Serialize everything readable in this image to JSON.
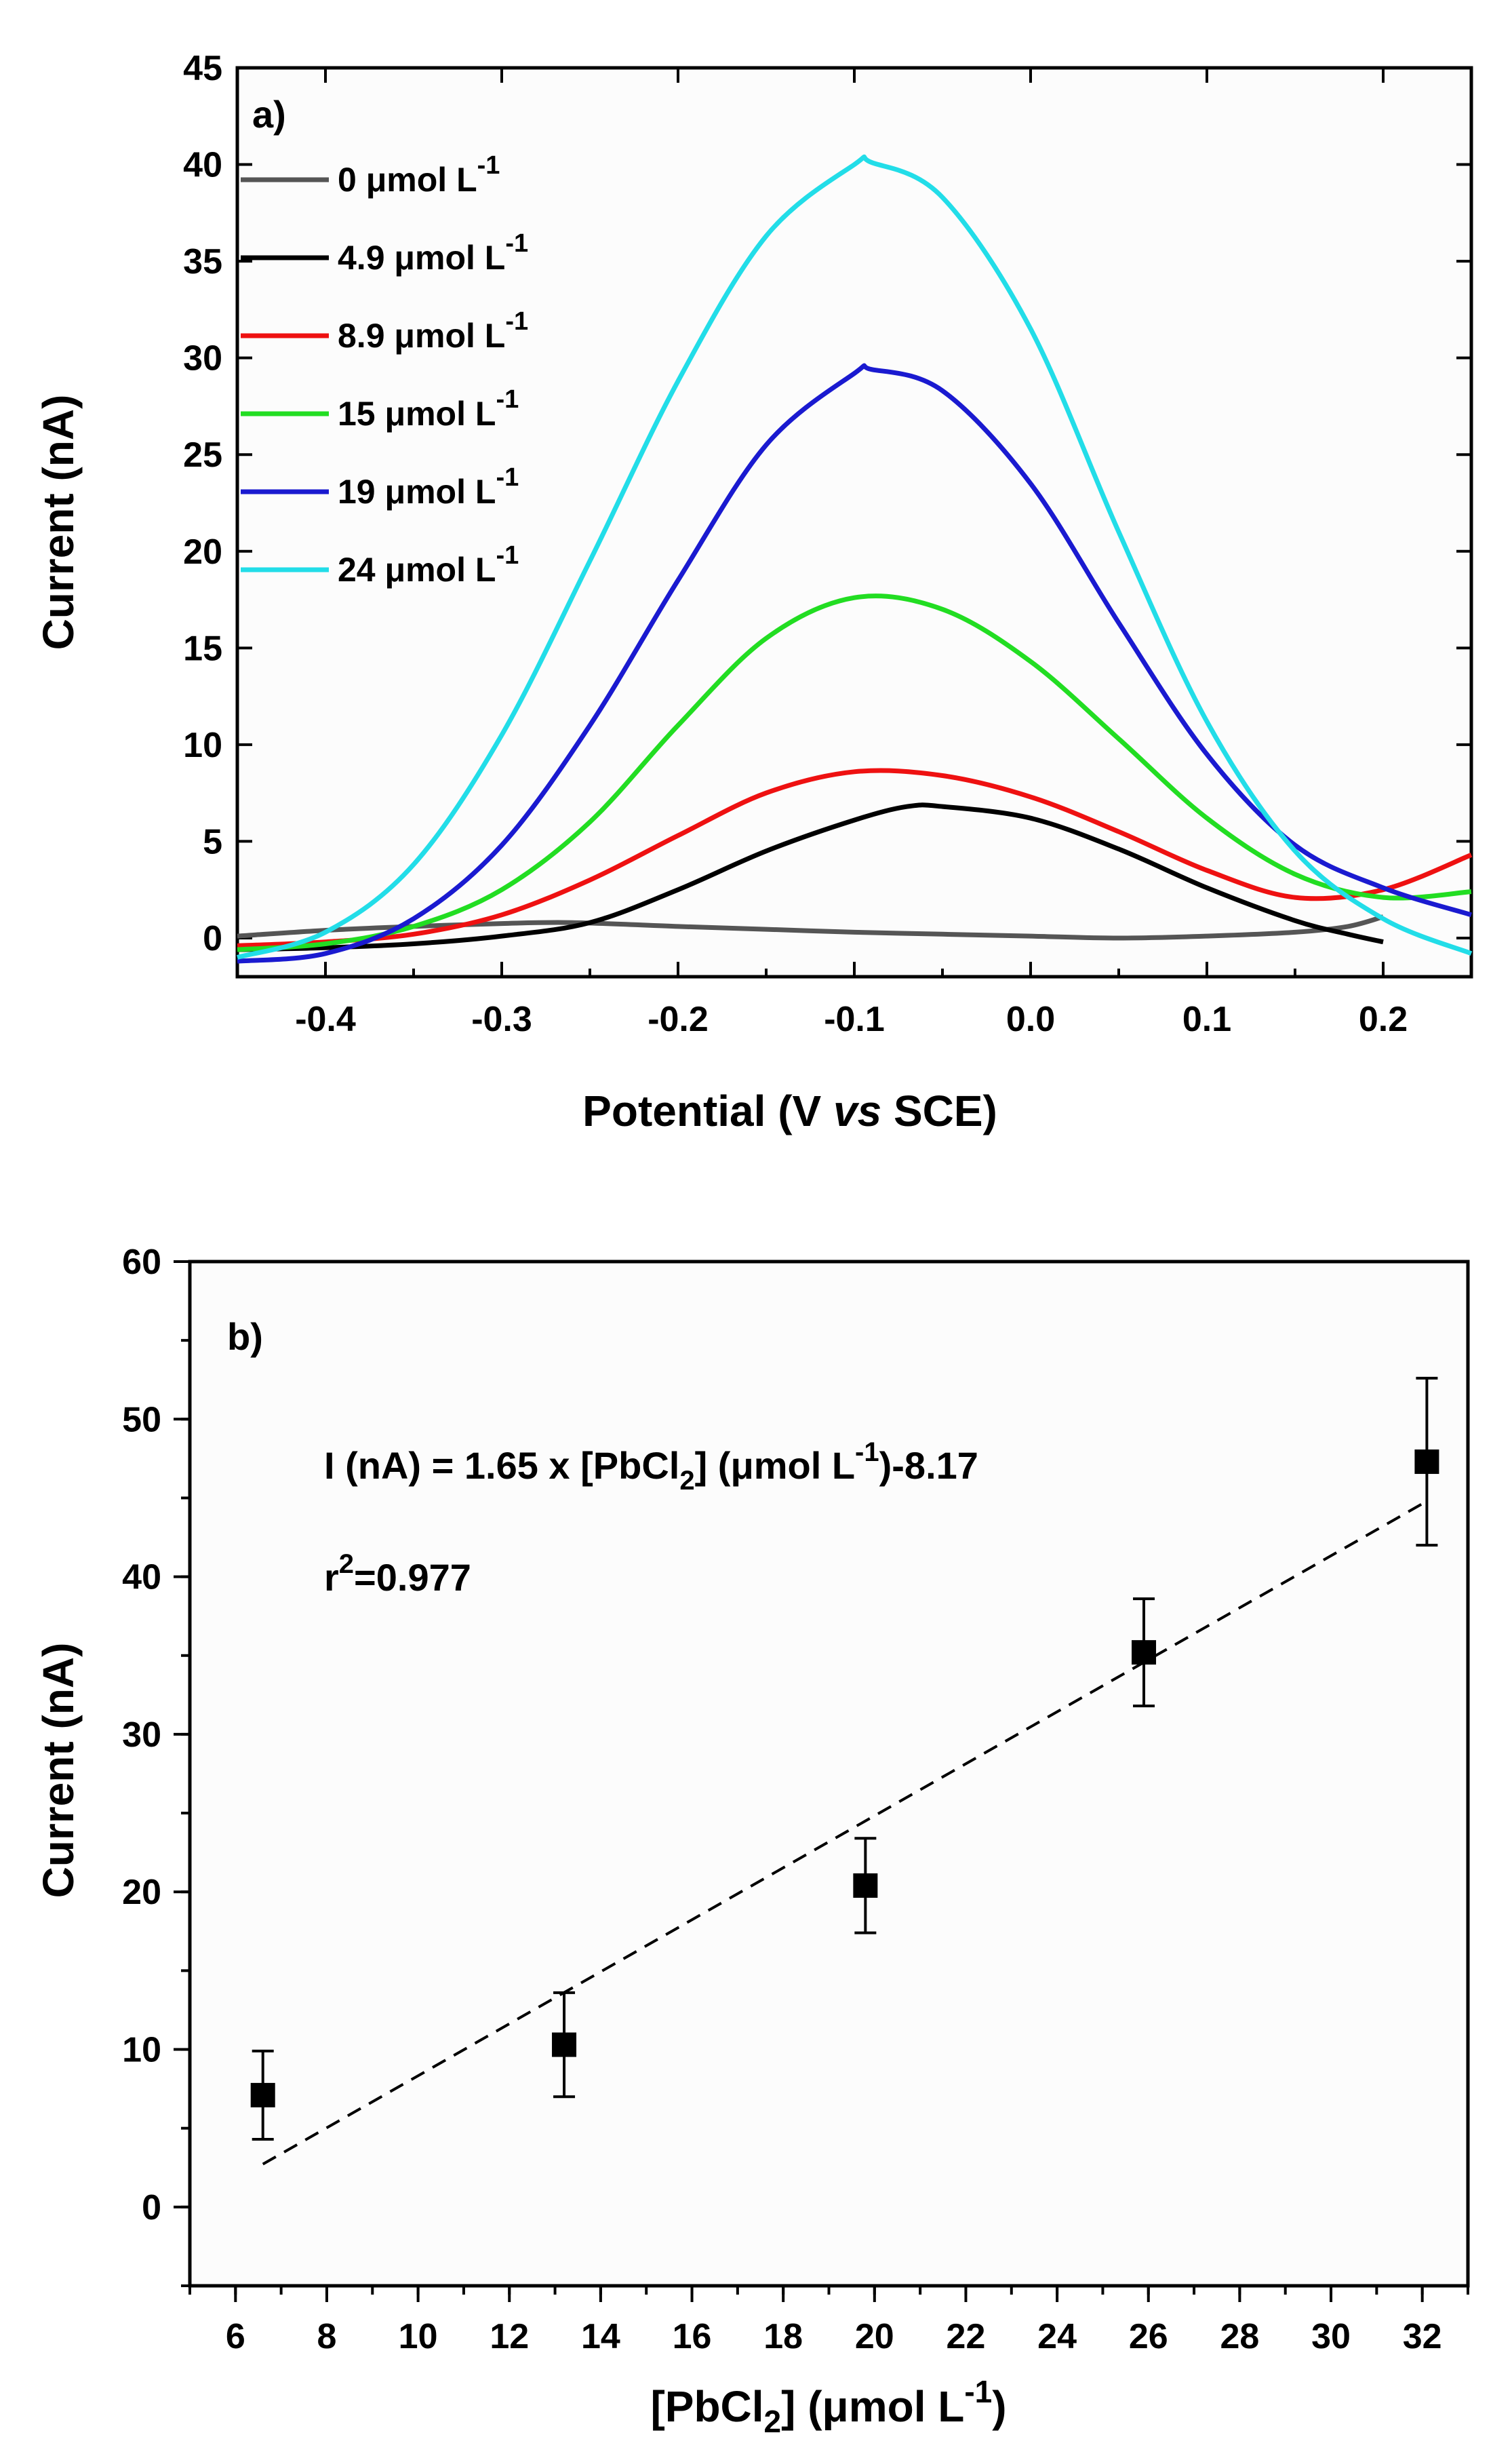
{
  "chart_data": [
    {
      "type": "line",
      "panel_label": "a)",
      "xlabel": {
        "pre": "Potential (V ",
        "italic": "vs",
        "post": " SCE)"
      },
      "ylabel": "Current (nA)",
      "xlim": [
        -0.45,
        0.25
      ],
      "ylim": [
        -2,
        45
      ],
      "x_ticks": [
        -0.4,
        -0.3,
        -0.2,
        -0.1,
        0.0,
        0.1,
        0.2
      ],
      "x_tick_labels": [
        "-0.4",
        "-0.3",
        "-0.2",
        "-0.1",
        "0.0",
        "0.1",
        "0.2"
      ],
      "y_ticks": [
        0,
        5,
        10,
        15,
        20,
        25,
        30,
        35,
        40,
        45
      ],
      "y_tick_labels": [
        "0",
        "5",
        "10",
        "15",
        "20",
        "25",
        "30",
        "35",
        "40",
        "45"
      ],
      "legend_position": "top-left",
      "series": [
        {
          "name": "0 μmol L-1",
          "label_main": "0 μmol L",
          "label_sup": "-1",
          "color": "#555555",
          "points": [
            [
              -0.45,
              0.1
            ],
            [
              -0.4,
              0.4
            ],
            [
              -0.35,
              0.6
            ],
            [
              -0.3,
              0.75
            ],
            [
              -0.26,
              0.8
            ],
            [
              -0.2,
              0.6
            ],
            [
              -0.15,
              0.45
            ],
            [
              -0.1,
              0.3
            ],
            [
              -0.05,
              0.2
            ],
            [
              0.0,
              0.1
            ],
            [
              0.05,
              0.0
            ],
            [
              0.1,
              0.1
            ],
            [
              0.15,
              0.3
            ],
            [
              0.18,
              0.6
            ],
            [
              0.2,
              1.1
            ]
          ]
        },
        {
          "name": "4.9 μmol L-1",
          "label_main": "4.9 μmol L",
          "label_sup": "-1",
          "color": "#000000",
          "points": [
            [
              -0.45,
              -0.6
            ],
            [
              -0.4,
              -0.5
            ],
            [
              -0.35,
              -0.3
            ],
            [
              -0.3,
              0.1
            ],
            [
              -0.25,
              0.8
            ],
            [
              -0.2,
              2.5
            ],
            [
              -0.15,
              4.5
            ],
            [
              -0.1,
              6.1
            ],
            [
              -0.07,
              6.8
            ],
            [
              -0.05,
              6.8
            ],
            [
              0.0,
              6.2
            ],
            [
              0.05,
              4.6
            ],
            [
              0.1,
              2.6
            ],
            [
              0.15,
              0.9
            ],
            [
              0.18,
              0.2
            ],
            [
              0.2,
              -0.2
            ]
          ]
        },
        {
          "name": "8.9 μmol L-1",
          "label_main": "8.9 μmol L",
          "label_sup": "-1",
          "color": "#ee1111",
          "points": [
            [
              -0.45,
              -0.4
            ],
            [
              -0.4,
              -0.2
            ],
            [
              -0.35,
              0.2
            ],
            [
              -0.3,
              1.2
            ],
            [
              -0.25,
              3.0
            ],
            [
              -0.2,
              5.3
            ],
            [
              -0.15,
              7.5
            ],
            [
              -0.1,
              8.6
            ],
            [
              -0.05,
              8.4
            ],
            [
              0.0,
              7.3
            ],
            [
              0.05,
              5.5
            ],
            [
              0.1,
              3.5
            ],
            [
              0.15,
              2.1
            ],
            [
              0.2,
              2.5
            ],
            [
              0.25,
              4.3
            ]
          ]
        },
        {
          "name": "15 μmol L-1",
          "label_main": "15 μmol L",
          "label_sup": "-1",
          "color": "#22dd22",
          "points": [
            [
              -0.45,
              -0.6
            ],
            [
              -0.4,
              -0.3
            ],
            [
              -0.35,
              0.6
            ],
            [
              -0.3,
              2.5
            ],
            [
              -0.25,
              6.0
            ],
            [
              -0.2,
              11.0
            ],
            [
              -0.15,
              15.5
            ],
            [
              -0.1,
              17.6
            ],
            [
              -0.05,
              17.0
            ],
            [
              0.0,
              14.3
            ],
            [
              0.05,
              10.3
            ],
            [
              0.1,
              6.2
            ],
            [
              0.15,
              3.3
            ],
            [
              0.2,
              2.1
            ],
            [
              0.25,
              2.4
            ]
          ]
        },
        {
          "name": "19 μmol L-1",
          "label_main": "19 μmol L",
          "label_sup": "-1",
          "color": "#1a1ad0",
          "points": [
            [
              -0.45,
              -1.2
            ],
            [
              -0.4,
              -0.8
            ],
            [
              -0.35,
              1.0
            ],
            [
              -0.3,
              4.8
            ],
            [
              -0.25,
              11.0
            ],
            [
              -0.2,
              18.5
            ],
            [
              -0.15,
              25.5
            ],
            [
              -0.1,
              29.2
            ],
            [
              -0.09,
              29.4
            ],
            [
              -0.05,
              28.3
            ],
            [
              0.0,
              23.5
            ],
            [
              0.05,
              16.3
            ],
            [
              0.1,
              9.5
            ],
            [
              0.15,
              4.8
            ],
            [
              0.2,
              2.6
            ],
            [
              0.25,
              1.2
            ]
          ]
        },
        {
          "name": "24 μmol L-1",
          "label_main": "24 μmol L",
          "label_sup": "-1",
          "color": "#22dde8",
          "points": [
            [
              -0.45,
              -1.0
            ],
            [
              -0.4,
              0.3
            ],
            [
              -0.35,
              3.8
            ],
            [
              -0.3,
              10.5
            ],
            [
              -0.25,
              19.5
            ],
            [
              -0.2,
              28.8
            ],
            [
              -0.15,
              36.3
            ],
            [
              -0.1,
              40.0
            ],
            [
              -0.09,
              40.1
            ],
            [
              -0.05,
              38.3
            ],
            [
              0.0,
              31.5
            ],
            [
              0.05,
              21.0
            ],
            [
              0.1,
              11.2
            ],
            [
              0.15,
              4.5
            ],
            [
              0.2,
              1.0
            ],
            [
              0.25,
              -0.8
            ]
          ]
        }
      ]
    },
    {
      "type": "scatter",
      "panel_label": "b)",
      "xlabel": {
        "pre": "[PbCl",
        "sub": "2",
        "post": "] (μmol L",
        "sup": "-1",
        "end": ")"
      },
      "ylabel": "Current (nA)",
      "xlim": [
        5,
        33
      ],
      "ylim": [
        -5,
        60
      ],
      "x_ticks": [
        6,
        8,
        10,
        12,
        14,
        16,
        18,
        20,
        22,
        24,
        26,
        28,
        30,
        32
      ],
      "x_tick_labels": [
        "6",
        "8",
        "10",
        "12",
        "14",
        "16",
        "18",
        "20",
        "22",
        "24",
        "26",
        "28",
        "30",
        "32"
      ],
      "y_ticks": [
        0,
        10,
        20,
        30,
        40,
        50,
        60
      ],
      "y_tick_labels": [
        "0",
        "10",
        "20",
        "30",
        "40",
        "50",
        "60"
      ],
      "points": [
        {
          "x": 6.6,
          "y": 7.1,
          "err": 2.8
        },
        {
          "x": 13.2,
          "y": 10.3,
          "err": 3.3
        },
        {
          "x": 19.8,
          "y": 20.4,
          "err": 3.0
        },
        {
          "x": 25.9,
          "y": 35.2,
          "err": 3.4
        },
        {
          "x": 32.1,
          "y": 47.3,
          "err": 5.3
        }
      ],
      "fit": {
        "slope": 1.65,
        "intercept": -8.17,
        "x_range": [
          6.6,
          32.1
        ]
      },
      "equation": {
        "part1": "I (nA) = 1.65 x [PbCl",
        "sub": "2",
        "part2": "] (μmol L",
        "sup": "-1",
        "part3": ")-8.17"
      },
      "r2": {
        "pre": "r",
        "sup": "2",
        "post": "=0.977"
      }
    }
  ]
}
